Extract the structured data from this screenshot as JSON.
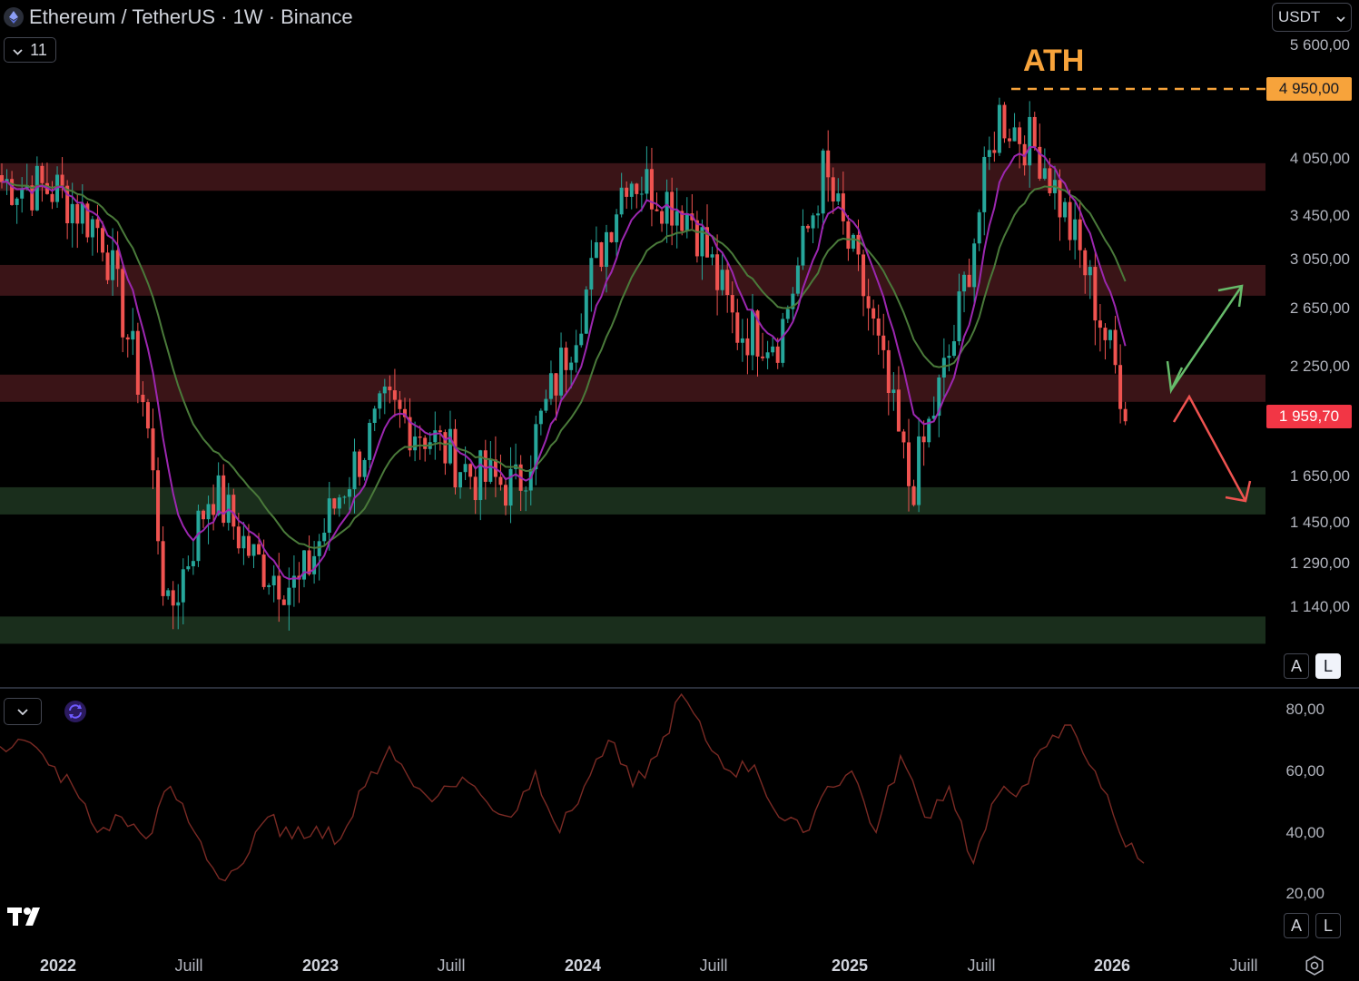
{
  "header": {
    "title": "Ethereum / TetherUS · 1W · Binance",
    "currency": "USDT",
    "indicators_count": "11"
  },
  "colors": {
    "up": "#26a69a",
    "down": "#ef5350",
    "resistance_zone": "#3a1417",
    "support_zone": "#1a2e1c",
    "ema_fast": "#9c27b0",
    "ema_slow": "#4a7a3a",
    "ath": "#f7a33b",
    "last_price": "#f23645",
    "oscillator_line": "#7a2a24",
    "arrow_up": "#66bb6a",
    "arrow_down": "#ef5350"
  },
  "annotation": {
    "ath_label": "ATH",
    "ath_price": "4 950,00",
    "last_price": "1 959,70"
  },
  "price_axis": {
    "labels": [
      "5 600,00",
      "4 050,00",
      "3 450,00",
      "3 050,00",
      "2 650,00",
      "2 250,00",
      "1 650,00",
      "1 450,00",
      "1 290,00",
      "1 140,00"
    ]
  },
  "time_axis": {
    "labels": [
      {
        "text": "2022",
        "bold": true
      },
      {
        "text": "Juill",
        "bold": false
      },
      {
        "text": "2023",
        "bold": true
      },
      {
        "text": "Juill",
        "bold": false
      },
      {
        "text": "2024",
        "bold": true
      },
      {
        "text": "Juill",
        "bold": false
      },
      {
        "text": "2025",
        "bold": true
      },
      {
        "text": "Juill",
        "bold": false
      },
      {
        "text": "2026",
        "bold": true
      },
      {
        "text": "Juill",
        "bold": false
      }
    ]
  },
  "scale_buttons": {
    "auto": "A",
    "log": "L"
  },
  "oscillator": {
    "axis_labels": [
      "80,00",
      "60,00",
      "40,00",
      "20,00"
    ]
  },
  "chart_data": {
    "type": "candlestick",
    "title": "Ethereum / TetherUS · 1W · Binance",
    "y_scale": "log",
    "weekly_close_approx": [
      {
        "x": "2022-01",
        "close": 3700
      },
      {
        "x": "2022-03",
        "close": 3300
      },
      {
        "x": "2022-05",
        "close": 2000
      },
      {
        "x": "2022-06",
        "close": 1100
      },
      {
        "x": "2022-08",
        "close": 1600
      },
      {
        "x": "2022-10",
        "close": 1300
      },
      {
        "x": "2022-12",
        "close": 1200
      },
      {
        "x": "2023-02",
        "close": 1600
      },
      {
        "x": "2023-04",
        "close": 2000
      },
      {
        "x": "2023-06",
        "close": 1850
      },
      {
        "x": "2023-08",
        "close": 1650
      },
      {
        "x": "2023-10",
        "close": 1600
      },
      {
        "x": "2023-12",
        "close": 2250
      },
      {
        "x": "2024-03",
        "close": 3900
      },
      {
        "x": "2024-06",
        "close": 3450
      },
      {
        "x": "2024-08",
        "close": 2500
      },
      {
        "x": "2024-10",
        "close": 2450
      },
      {
        "x": "2024-12",
        "close": 3900
      },
      {
        "x": "2025-02",
        "close": 2700
      },
      {
        "x": "2025-04",
        "close": 1580
      },
      {
        "x": "2025-06",
        "close": 2450
      },
      {
        "x": "2025-08",
        "close": 4600
      },
      {
        "x": "2025-10",
        "close": 4100
      },
      {
        "x": "2025-12",
        "close": 2950
      },
      {
        "x": "2026-02",
        "close": 1959.7
      }
    ],
    "zones": [
      {
        "type": "resistance",
        "from": 3700,
        "to": 4000
      },
      {
        "type": "resistance",
        "from": 2750,
        "to": 3000
      },
      {
        "type": "resistance",
        "from": 2050,
        "to": 2200
      },
      {
        "type": "support",
        "from": 1500,
        "to": 1600
      },
      {
        "type": "support",
        "from": 1050,
        "to": 1110
      }
    ],
    "ath": 4950,
    "last": 1959.7,
    "oscillator_values_approx": [
      68,
      70,
      62,
      55,
      40,
      45,
      38,
      55,
      40,
      25,
      30,
      45,
      38,
      42,
      38,
      55,
      68,
      55,
      52,
      58,
      50,
      45,
      60,
      40,
      55,
      70,
      55,
      65,
      85,
      70,
      60,
      62,
      45,
      40,
      55,
      60,
      40,
      65,
      45,
      55,
      30,
      52,
      55,
      68,
      75,
      60,
      40,
      30
    ]
  }
}
